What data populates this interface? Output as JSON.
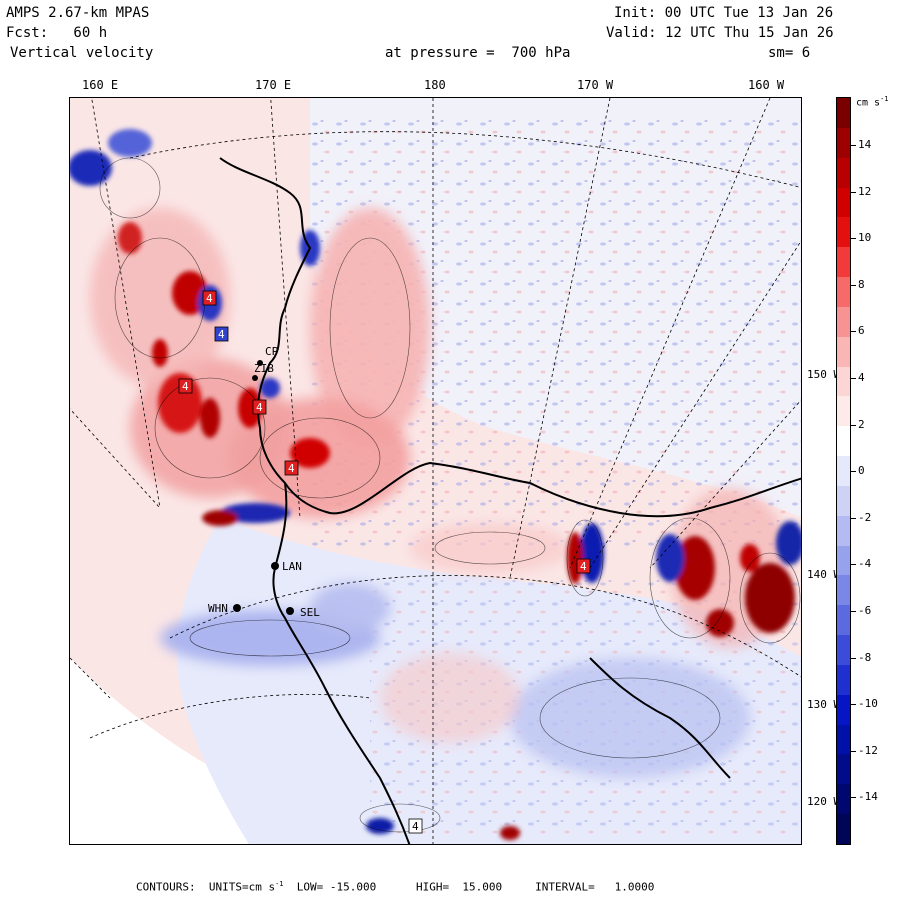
{
  "header": {
    "model": "AMPS 2.67-km MPAS",
    "forecast": "Fcst:   60 h",
    "field": "Vertical velocity",
    "init": "Init: 00 UTC Tue 13 Jan 26",
    "valid": "Valid: 12 UTC Thu 15 Jan 26",
    "level": "at pressure =  700 hPa",
    "smoothing": "sm= 6"
  },
  "longitude_labels": [
    "160 E",
    "170 E",
    "180",
    "170 W",
    "160 W"
  ],
  "latitude_labels": [
    "150 W",
    "140 W",
    "130 W",
    "120 W"
  ],
  "stations": [
    "CP",
    "ZIB",
    "LAN",
    "WHN",
    "SEL"
  ],
  "extrema_markers": [
    "4",
    "4",
    "4",
    "4",
    "4",
    "4",
    "4"
  ],
  "colorbar": {
    "units": "cm s",
    "units_exponent": "-1",
    "tick_labels": [
      "14",
      "12",
      "10",
      "8",
      "6",
      "4",
      "2",
      "0",
      "-2",
      "-4",
      "-6",
      "-8",
      "-10",
      "-12",
      "-14"
    ],
    "colors": [
      "#7a0000",
      "#9c0000",
      "#b80000",
      "#d00000",
      "#e41010",
      "#f23a3a",
      "#f66a6a",
      "#f89393",
      "#fab5b5",
      "#fcd5d5",
      "#ffeaea",
      "#ffffff",
      "#e6e8fb",
      "#ced3f6",
      "#b3bbf2",
      "#97a2ed",
      "#7a87e6",
      "#5c6ae0",
      "#3d4cd8",
      "#1f2fd0",
      "#0716c4",
      "#0010a8",
      "#000c8a",
      "#000870",
      "#000558"
    ]
  },
  "footer": {
    "text": "CONTOURS:  UNITS=cm s",
    "exponent": "-1",
    "stats": "  LOW= -15.000      HIGH=  15.000     INTERVAL=   1.0000"
  },
  "colors": {
    "positive": "#f3a6a6",
    "negative": "#8f9be8",
    "background_field": "#eef0fb"
  }
}
